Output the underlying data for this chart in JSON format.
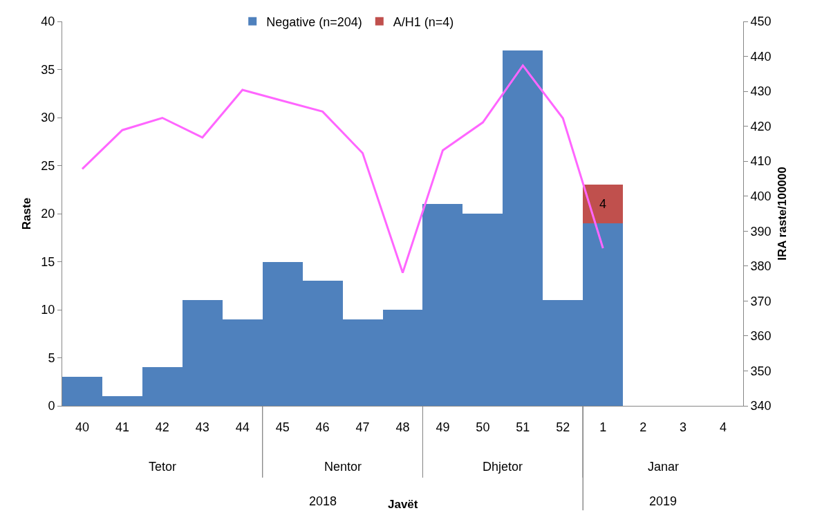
{
  "chart_data": {
    "type": "bar",
    "stacked": true,
    "ylabel": "Raste",
    "y2label": "IRA raste/100000",
    "categories": [
      "40",
      "41",
      "42",
      "43",
      "44",
      "45",
      "46",
      "47",
      "48",
      "49",
      "50",
      "51",
      "52",
      "1",
      "2",
      "3",
      "4"
    ],
    "series": [
      {
        "name": "Negative (n=204)",
        "color": "#4f81bd",
        "values": [
          3,
          1,
          4,
          11,
          9,
          15,
          13,
          9,
          10,
          21,
          20,
          37,
          11,
          19,
          null,
          null,
          null
        ]
      },
      {
        "name": "A/H1 (n=4)",
        "color": "#c0504d",
        "values": [
          null,
          null,
          null,
          null,
          null,
          null,
          null,
          null,
          null,
          null,
          null,
          null,
          null,
          4,
          null,
          null,
          null
        ],
        "value_labels": [
          null,
          null,
          null,
          null,
          null,
          null,
          null,
          null,
          null,
          null,
          null,
          null,
          null,
          "4",
          null,
          null,
          null
        ]
      },
      {
        "type": "line",
        "axis": "y2",
        "color": "#ff66ff",
        "marker": "none",
        "line_style": "solid",
        "values": [
          407.8,
          418.9,
          422.4,
          416.8,
          430.4,
          427.3,
          424.2,
          412.3,
          378.1,
          413.1,
          421.1,
          437.4,
          422.3,
          385.1,
          null,
          null,
          null
        ]
      }
    ],
    "ylim": [
      0,
      40
    ],
    "yticks": [
      0,
      5,
      10,
      15,
      20,
      25,
      30,
      35,
      40
    ],
    "y2lim": [
      340,
      450
    ],
    "y2ticks": [
      340,
      350,
      360,
      370,
      380,
      390,
      400,
      410,
      420,
      430,
      440,
      450
    ],
    "legend": "top",
    "annotations": [
      "Tetor",
      "Nentor",
      "Dhjetor",
      "Janar",
      "2018",
      "Javët",
      "2019"
    ]
  }
}
